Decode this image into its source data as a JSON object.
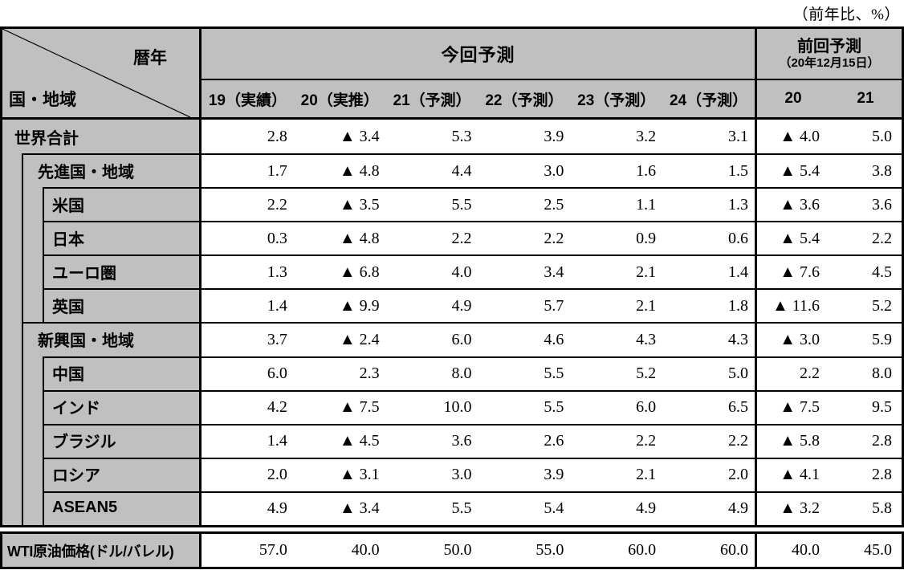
{
  "unit_note": "（前年比、%）",
  "header": {
    "corner_top": "暦年",
    "corner_bottom": "国・地域",
    "group_current": "今回予測",
    "group_previous_line1": "前回予測",
    "group_previous_line2": "（20年12月15日）",
    "subheaders_current": [
      "19（実績）",
      "20（実推）",
      "21（予測）",
      "22（予測）",
      "23（予測）",
      "24（予測）"
    ],
    "subheaders_previous": [
      "20",
      "21"
    ]
  },
  "rows": [
    {
      "label": "世界合計",
      "level": 0,
      "values": [
        "2.8",
        "▲ 3.4",
        "5.3",
        "3.9",
        "3.2",
        "3.1",
        "▲ 4.0",
        "5.0"
      ]
    },
    {
      "label": "先進国・地域",
      "level": 1,
      "values": [
        "1.7",
        "▲ 4.8",
        "4.4",
        "3.0",
        "1.6",
        "1.5",
        "▲ 5.4",
        "3.8"
      ]
    },
    {
      "label": "米国",
      "level": 2,
      "values": [
        "2.2",
        "▲ 3.5",
        "5.5",
        "2.5",
        "1.1",
        "1.3",
        "▲ 3.6",
        "3.6"
      ]
    },
    {
      "label": "日本",
      "level": 2,
      "values": [
        "0.3",
        "▲ 4.8",
        "2.2",
        "2.2",
        "0.9",
        "0.6",
        "▲ 5.4",
        "2.2"
      ]
    },
    {
      "label": "ユーロ圏",
      "level": 2,
      "values": [
        "1.3",
        "▲ 6.8",
        "4.0",
        "3.4",
        "2.1",
        "1.4",
        "▲ 7.6",
        "4.5"
      ]
    },
    {
      "label": "英国",
      "level": 2,
      "values": [
        "1.4",
        "▲ 9.9",
        "4.9",
        "5.7",
        "2.1",
        "1.8",
        "▲ 11.6",
        "5.2"
      ]
    },
    {
      "label": "新興国・地域",
      "level": 1,
      "values": [
        "3.7",
        "▲ 2.4",
        "6.0",
        "4.6",
        "4.3",
        "4.3",
        "▲ 3.0",
        "5.9"
      ]
    },
    {
      "label": "中国",
      "level": 2,
      "values": [
        "6.0",
        "2.3",
        "8.0",
        "5.5",
        "5.2",
        "5.0",
        "2.2",
        "8.0"
      ]
    },
    {
      "label": "インド",
      "level": 2,
      "values": [
        "4.2",
        "▲ 7.5",
        "10.0",
        "5.5",
        "6.0",
        "6.5",
        "▲ 7.5",
        "9.5"
      ]
    },
    {
      "label": "ブラジル",
      "level": 2,
      "values": [
        "1.4",
        "▲ 4.5",
        "3.6",
        "2.6",
        "2.2",
        "2.2",
        "▲ 5.8",
        "2.8"
      ]
    },
    {
      "label": "ロシア",
      "level": 2,
      "values": [
        "2.0",
        "▲ 3.1",
        "3.0",
        "3.9",
        "2.1",
        "2.0",
        "▲ 4.1",
        "2.8"
      ]
    },
    {
      "label": "ASEAN5",
      "level": 2,
      "values": [
        "4.9",
        "▲ 3.4",
        "5.5",
        "5.4",
        "4.9",
        "4.9",
        "▲ 3.2",
        "5.8"
      ]
    }
  ],
  "wti": {
    "label": "WTI原油価格(ドル/バレル)",
    "values": [
      "57.0",
      "40.0",
      "50.0",
      "55.0",
      "60.0",
      "60.0",
      "40.0",
      "45.0"
    ]
  },
  "colors": {
    "header_bg": "#c0c0c0",
    "cell_bg": "#ffffff",
    "border": "#000000",
    "negative_marker": "▲"
  },
  "chart_data": {
    "type": "table",
    "unit": "前年比、%",
    "column_groups": [
      {
        "label": "今回予測",
        "span": 6
      },
      {
        "label": "前回予測（20年12月15日）",
        "span": 2
      }
    ],
    "columns": [
      "19（実績）",
      "20（実推）",
      "21（予測）",
      "22（予測）",
      "23（予測）",
      "24（予測）",
      "前回20",
      "前回21"
    ],
    "rows": [
      {
        "label": "世界合計",
        "values": [
          2.8,
          -3.4,
          5.3,
          3.9,
          3.2,
          3.1,
          -4.0,
          5.0
        ]
      },
      {
        "label": "先進国・地域",
        "values": [
          1.7,
          -4.8,
          4.4,
          3.0,
          1.6,
          1.5,
          -5.4,
          3.8
        ]
      },
      {
        "label": "米国",
        "values": [
          2.2,
          -3.5,
          5.5,
          2.5,
          1.1,
          1.3,
          -3.6,
          3.6
        ]
      },
      {
        "label": "日本",
        "values": [
          0.3,
          -4.8,
          2.2,
          2.2,
          0.9,
          0.6,
          -5.4,
          2.2
        ]
      },
      {
        "label": "ユーロ圏",
        "values": [
          1.3,
          -6.8,
          4.0,
          3.4,
          2.1,
          1.4,
          -7.6,
          4.5
        ]
      },
      {
        "label": "英国",
        "values": [
          1.4,
          -9.9,
          4.9,
          5.7,
          2.1,
          1.8,
          -11.6,
          5.2
        ]
      },
      {
        "label": "新興国・地域",
        "values": [
          3.7,
          -2.4,
          6.0,
          4.6,
          4.3,
          4.3,
          -3.0,
          5.9
        ]
      },
      {
        "label": "中国",
        "values": [
          6.0,
          2.3,
          8.0,
          5.5,
          5.2,
          5.0,
          2.2,
          8.0
        ]
      },
      {
        "label": "インド",
        "values": [
          4.2,
          -7.5,
          10.0,
          5.5,
          6.0,
          6.5,
          -7.5,
          9.5
        ]
      },
      {
        "label": "ブラジル",
        "values": [
          1.4,
          -4.5,
          3.6,
          2.6,
          2.2,
          2.2,
          -5.8,
          2.8
        ]
      },
      {
        "label": "ロシア",
        "values": [
          2.0,
          -3.1,
          3.0,
          3.9,
          2.1,
          2.0,
          -4.1,
          2.8
        ]
      },
      {
        "label": "ASEAN5",
        "values": [
          4.9,
          -3.4,
          5.5,
          5.4,
          4.9,
          4.9,
          -3.2,
          5.8
        ]
      }
    ],
    "wti_row": {
      "label": "WTI原油価格(ドル/バレル)",
      "values": [
        57.0,
        40.0,
        50.0,
        55.0,
        60.0,
        60.0,
        40.0,
        45.0
      ]
    }
  }
}
